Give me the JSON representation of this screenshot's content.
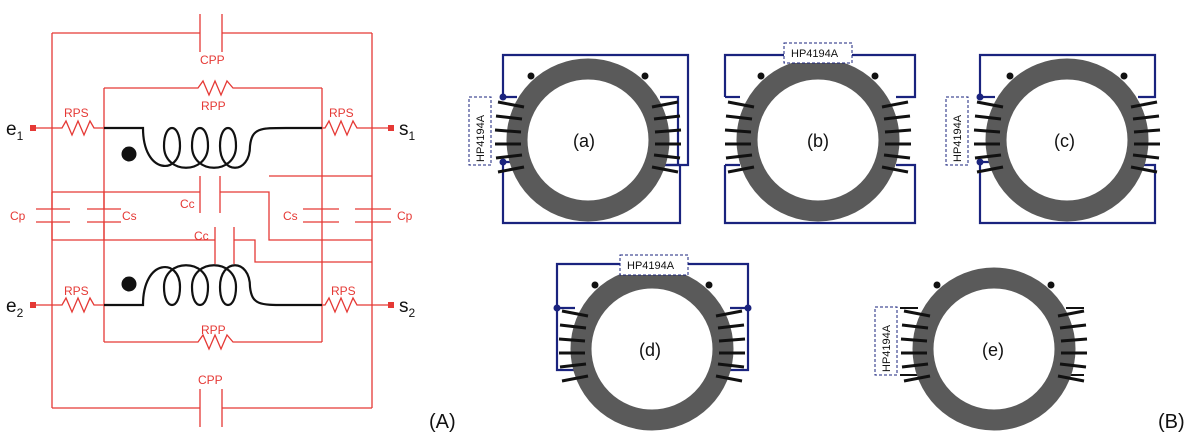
{
  "panel_a": {
    "label": "(A)",
    "components": {
      "cpp_top": "CPP",
      "rpp_top": "RPP",
      "rps_e1": "RPS",
      "rps_s1": "RPS",
      "cp_left": "Cp",
      "cs_left": "Cs",
      "cc_1": "Cc",
      "cc_2": "Cc",
      "cs_right": "Cs",
      "cp_right": "Cp",
      "rps_e2": "RPS",
      "rps_s2": "RPS",
      "rpp_bottom": "RPP",
      "cpp_bottom": "CPP"
    },
    "ports": {
      "e1": {
        "main": "e",
        "sub": "1"
      },
      "e2": {
        "main": "e",
        "sub": "2"
      },
      "s1": {
        "main": "s",
        "sub": "1"
      },
      "s2": {
        "main": "s",
        "sub": "2"
      }
    },
    "colors": {
      "circuit": "#e53935",
      "winding": "#111111"
    }
  },
  "panel_b": {
    "label": "(B)",
    "instrument": "HP4194A",
    "cases": [
      {
        "id": "a",
        "label": "(a)"
      },
      {
        "id": "b",
        "label": "(b)"
      },
      {
        "id": "c",
        "label": "(c)"
      },
      {
        "id": "d",
        "label": "(d)"
      },
      {
        "id": "e",
        "label": "(e)"
      }
    ],
    "colors": {
      "wiring": "#1a237e",
      "core": "#5a5a5a"
    }
  }
}
